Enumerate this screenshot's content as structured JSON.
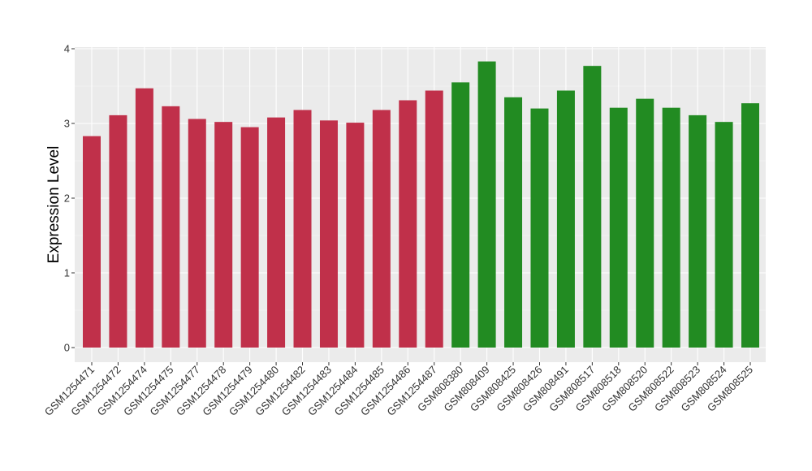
{
  "chart_data": {
    "type": "bar",
    "title": "",
    "xlabel": "",
    "ylabel": "Expression Level",
    "ylim": [
      0,
      4
    ],
    "yticks": [
      "0",
      "1",
      "2",
      "3",
      "4"
    ],
    "grid": true,
    "background_color": "#ebebeb",
    "categories": [
      "GSM1254471",
      "GSM1254472",
      "GSM1254474",
      "GSM1254475",
      "GSM1254477",
      "GSM1254478",
      "GSM1254479",
      "GSM1254480",
      "GSM1254482",
      "GSM1254483",
      "GSM1254484",
      "GSM1254485",
      "GSM1254486",
      "GSM1254487",
      "GSM808380",
      "GSM808409",
      "GSM808425",
      "GSM808426",
      "GSM808491",
      "GSM808517",
      "GSM808518",
      "GSM808520",
      "GSM808522",
      "GSM808523",
      "GSM808524",
      "GSM808525"
    ],
    "values": [
      2.83,
      3.11,
      3.47,
      3.23,
      3.06,
      3.02,
      2.95,
      3.08,
      3.18,
      3.04,
      3.01,
      3.18,
      3.31,
      3.44,
      3.55,
      3.83,
      3.35,
      3.2,
      3.44,
      3.77,
      3.21,
      3.33,
      3.21,
      3.11,
      3.02,
      3.27
    ],
    "colors": [
      "#c0304a",
      "#c0304a",
      "#c0304a",
      "#c0304a",
      "#c0304a",
      "#c0304a",
      "#c0304a",
      "#c0304a",
      "#c0304a",
      "#c0304a",
      "#c0304a",
      "#c0304a",
      "#c0304a",
      "#c0304a",
      "#228b22",
      "#228b22",
      "#228b22",
      "#228b22",
      "#228b22",
      "#228b22",
      "#228b22",
      "#228b22",
      "#228b22",
      "#228b22",
      "#228b22",
      "#228b22"
    ]
  }
}
